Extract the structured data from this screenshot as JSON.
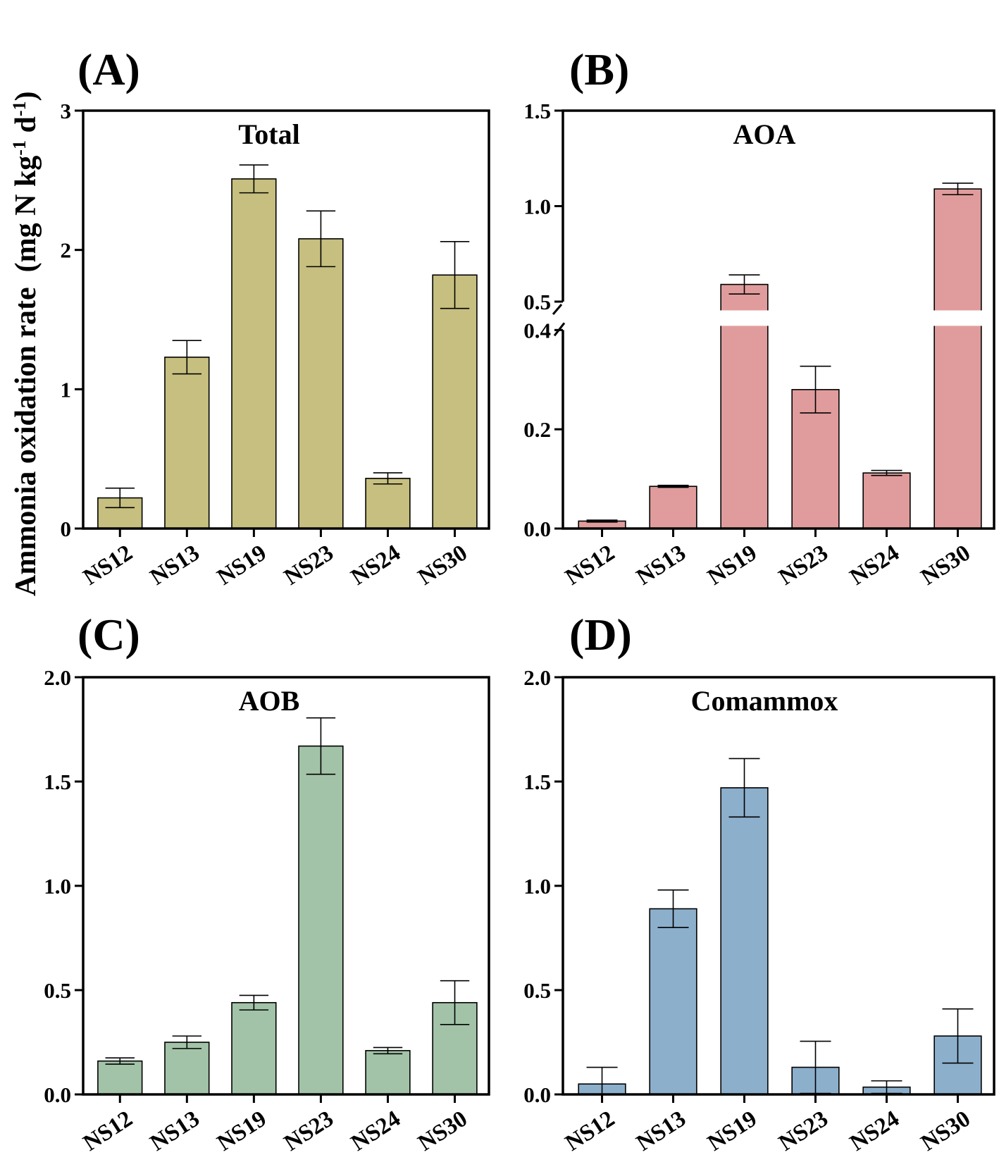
{
  "y_axis_label": {
    "main": "Ammonia oxidation rate  (mg N kg",
    "sup1": "-1",
    "mid": " d",
    "sup2": "-1",
    "end": ")"
  },
  "chart_data": [
    {
      "id": "A",
      "type": "bar",
      "panel_label": "(A)",
      "title": "Total",
      "color": "#c6bf7f",
      "categories": [
        "NS12",
        "NS13",
        "NS19",
        "NS23",
        "NS24",
        "NS30"
      ],
      "values": [
        0.22,
        1.23,
        2.51,
        2.08,
        0.36,
        1.82
      ],
      "errors": [
        0.07,
        0.12,
        0.1,
        0.2,
        0.04,
        0.24
      ],
      "ylim": [
        0,
        3
      ],
      "yticks": [
        0,
        1,
        2,
        3
      ],
      "ytick_labels": [
        "0",
        "1",
        "2",
        "3"
      ]
    },
    {
      "id": "B",
      "type": "bar",
      "panel_label": "(B)",
      "title": "AOA",
      "color": "#e09c9c",
      "categories": [
        "NS12",
        "NS13",
        "NS19",
        "NS23",
        "NS24",
        "NS30"
      ],
      "values": [
        0.015,
        0.085,
        0.59,
        0.28,
        0.112,
        1.09
      ],
      "errors": [
        0.002,
        0.002,
        0.05,
        0.047,
        0.005,
        0.03
      ],
      "y_break": {
        "lower": [
          0,
          0.4
        ],
        "upper": [
          0.5,
          1.5
        ]
      },
      "yticks_lower": [
        0.0,
        0.2,
        0.4
      ],
      "ytick_labels_lower": [
        "0.0",
        "0.2",
        "0.4"
      ],
      "yticks_upper": [
        0.5,
        1.0,
        1.5
      ],
      "ytick_labels_upper": [
        "0.5",
        "1.0",
        "1.5"
      ]
    },
    {
      "id": "C",
      "type": "bar",
      "panel_label": "(C)",
      "title": "AOB",
      "color": "#a2c3a7",
      "categories": [
        "NS12",
        "NS13",
        "NS19",
        "NS23",
        "NS24",
        "NS30"
      ],
      "values": [
        0.16,
        0.25,
        0.44,
        1.67,
        0.21,
        0.44
      ],
      "errors": [
        0.015,
        0.03,
        0.035,
        0.135,
        0.015,
        0.105
      ],
      "ylim": [
        0,
        2
      ],
      "yticks": [
        0,
        0.5,
        1,
        1.5,
        2
      ],
      "ytick_labels": [
        "0.0",
        "0.5",
        "1.0",
        "1.5",
        "2.0"
      ]
    },
    {
      "id": "D",
      "type": "bar",
      "panel_label": "(D)",
      "title": "Comammox",
      "color": "#8cafcc",
      "categories": [
        "NS12",
        "NS13",
        "NS19",
        "NS23",
        "NS24",
        "NS30"
      ],
      "values": [
        0.05,
        0.89,
        1.47,
        0.13,
        0.035,
        0.28
      ],
      "errors": [
        0.08,
        0.09,
        0.14,
        0.125,
        0.03,
        0.13
      ],
      "ylim": [
        0,
        2
      ],
      "yticks": [
        0,
        0.5,
        1,
        1.5,
        2
      ],
      "ytick_labels": [
        "0.0",
        "0.5",
        "1.0",
        "1.5",
        "2.0"
      ]
    }
  ]
}
